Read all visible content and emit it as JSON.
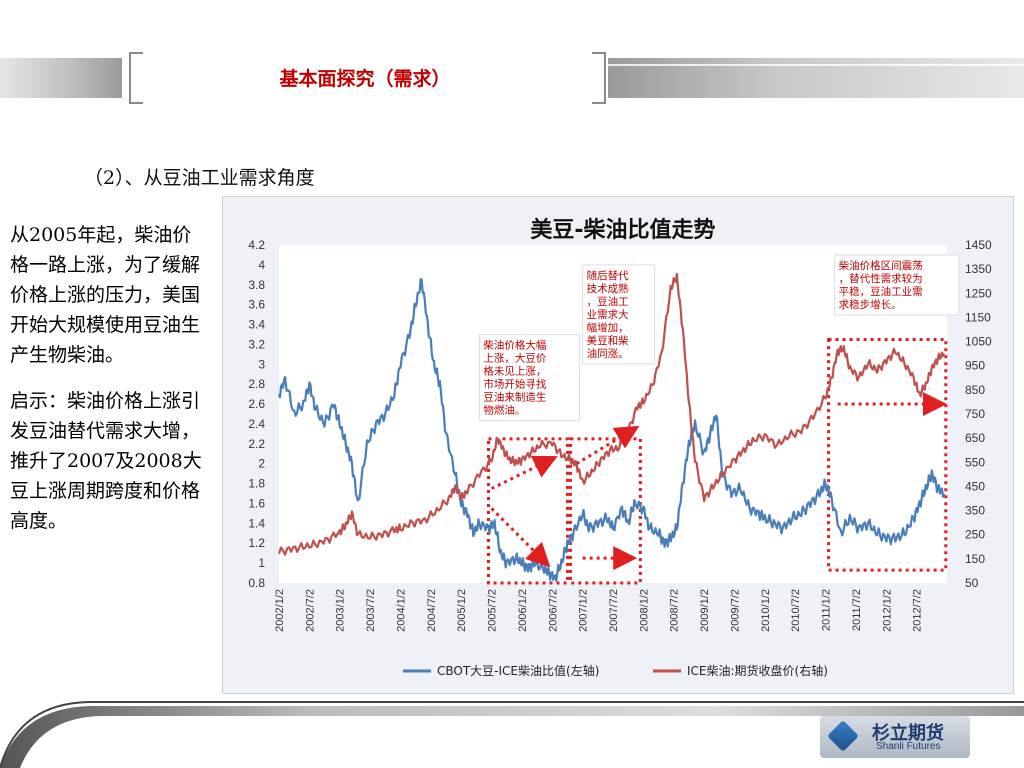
{
  "slide": {
    "title": "基本面探究（需求）",
    "subtitle": "（2）、从豆油工业需求角度",
    "paragraph1": "从2005年起，柴油价格一路上涨，为了缓解价格上涨的压力，美国开始大规模使用豆油生产生物柴油。",
    "paragraph2": "启示：柴油价格上涨引发豆油替代需求大增，推升了2007及2008大豆上涨周期跨度和价格高度。"
  },
  "logo": {
    "name_cn": "杉立期货",
    "name_en": "Shanli Futures"
  },
  "chart_data": {
    "type": "line",
    "title": "美豆-柴油比值走势",
    "x_ticks": [
      "2002/1/2",
      "2002/7/2",
      "2003/1/2",
      "2003/7/2",
      "2004/1/2",
      "2004/7/2",
      "2005/1/2",
      "2005/7/2",
      "2006/1/2",
      "2006/7/2",
      "2007/1/2",
      "2007/7/2",
      "2008/1/2",
      "2008/7/2",
      "2009/1/2",
      "2009/7/2",
      "2010/1/2",
      "2010/7/2",
      "2011/1/2",
      "2011/7/2",
      "2012/1/2",
      "2012/7/2"
    ],
    "y_left": {
      "ticks": [
        "0.8",
        "1",
        "1.2",
        "1.4",
        "1.6",
        "1.8",
        "2",
        "2.2",
        "2.4",
        "2.6",
        "2.8",
        "3",
        "3.2",
        "3.4",
        "3.6",
        "3.8",
        "4",
        "4.2"
      ],
      "min": 0.8,
      "max": 4.2
    },
    "y_right": {
      "ticks": [
        "50",
        "150",
        "250",
        "350",
        "450",
        "550",
        "650",
        "750",
        "850",
        "950",
        "1050",
        "1150",
        "1250",
        "1350",
        "1450"
      ],
      "min": 50,
      "max": 1450
    },
    "x_range": [
      2002.0,
      2013.0
    ],
    "series": [
      {
        "name": "CBOT大豆-ICE柴油比值(左轴)",
        "axis": "left",
        "color": "#4a7ebb",
        "points": [
          [
            2002.0,
            2.7
          ],
          [
            2002.1,
            2.85
          ],
          [
            2002.25,
            2.5
          ],
          [
            2002.4,
            2.6
          ],
          [
            2002.5,
            2.8
          ],
          [
            2002.6,
            2.55
          ],
          [
            2002.75,
            2.4
          ],
          [
            2002.9,
            2.6
          ],
          [
            2003.0,
            2.4
          ],
          [
            2003.1,
            2.2
          ],
          [
            2003.2,
            2.0
          ],
          [
            2003.3,
            1.6
          ],
          [
            2003.45,
            2.2
          ],
          [
            2003.6,
            2.4
          ],
          [
            2003.75,
            2.5
          ],
          [
            2003.9,
            2.7
          ],
          [
            2004.0,
            3.0
          ],
          [
            2004.15,
            3.3
          ],
          [
            2004.25,
            3.6
          ],
          [
            2004.35,
            3.85
          ],
          [
            2004.45,
            3.4
          ],
          [
            2004.55,
            3.0
          ],
          [
            2004.65,
            2.8
          ],
          [
            2004.75,
            2.3
          ],
          [
            2004.9,
            1.9
          ],
          [
            2005.0,
            1.6
          ],
          [
            2005.1,
            1.5
          ],
          [
            2005.2,
            1.3
          ],
          [
            2005.3,
            1.4
          ],
          [
            2005.45,
            1.35
          ],
          [
            2005.55,
            1.4
          ],
          [
            2005.65,
            1.1
          ],
          [
            2005.75,
            1.0
          ],
          [
            2005.9,
            1.05
          ],
          [
            2006.0,
            1.0
          ],
          [
            2006.1,
            0.95
          ],
          [
            2006.2,
            1.0
          ],
          [
            2006.35,
            0.95
          ],
          [
            2006.45,
            0.9
          ],
          [
            2006.55,
            0.85
          ],
          [
            2006.65,
            1.0
          ],
          [
            2006.75,
            1.2
          ],
          [
            2006.85,
            1.3
          ],
          [
            2007.0,
            1.5
          ],
          [
            2007.1,
            1.35
          ],
          [
            2007.25,
            1.4
          ],
          [
            2007.4,
            1.45
          ],
          [
            2007.5,
            1.35
          ],
          [
            2007.65,
            1.55
          ],
          [
            2007.75,
            1.4
          ],
          [
            2007.85,
            1.6
          ],
          [
            2008.0,
            1.55
          ],
          [
            2008.1,
            1.35
          ],
          [
            2008.25,
            1.3
          ],
          [
            2008.35,
            1.2
          ],
          [
            2008.45,
            1.25
          ],
          [
            2008.55,
            1.35
          ],
          [
            2008.65,
            1.8
          ],
          [
            2008.75,
            2.2
          ],
          [
            2008.85,
            2.4
          ],
          [
            2009.0,
            2.1
          ],
          [
            2009.1,
            2.3
          ],
          [
            2009.2,
            2.5
          ],
          [
            2009.3,
            1.9
          ],
          [
            2009.45,
            1.7
          ],
          [
            2009.6,
            1.75
          ],
          [
            2009.75,
            1.55
          ],
          [
            2009.9,
            1.5
          ],
          [
            2010.0,
            1.45
          ],
          [
            2010.15,
            1.4
          ],
          [
            2010.3,
            1.35
          ],
          [
            2010.45,
            1.45
          ],
          [
            2010.6,
            1.5
          ],
          [
            2010.75,
            1.6
          ],
          [
            2010.9,
            1.7
          ],
          [
            2011.0,
            1.8
          ],
          [
            2011.1,
            1.65
          ],
          [
            2011.25,
            1.3
          ],
          [
            2011.4,
            1.45
          ],
          [
            2011.55,
            1.35
          ],
          [
            2011.7,
            1.4
          ],
          [
            2011.85,
            1.3
          ],
          [
            2012.0,
            1.25
          ],
          [
            2012.15,
            1.25
          ],
          [
            2012.3,
            1.3
          ],
          [
            2012.45,
            1.45
          ],
          [
            2012.55,
            1.6
          ],
          [
            2012.65,
            1.75
          ],
          [
            2012.75,
            1.9
          ],
          [
            2012.85,
            1.75
          ],
          [
            2012.95,
            1.7
          ]
        ]
      },
      {
        "name": "ICE柴油:期货收盘价(右轴)",
        "axis": "right",
        "color": "#c0504d",
        "points": [
          [
            2002.0,
            180
          ],
          [
            2002.2,
            190
          ],
          [
            2002.4,
            200
          ],
          [
            2002.6,
            210
          ],
          [
            2002.8,
            230
          ],
          [
            2003.0,
            260
          ],
          [
            2003.1,
            290
          ],
          [
            2003.2,
            340
          ],
          [
            2003.3,
            250
          ],
          [
            2003.5,
            240
          ],
          [
            2003.7,
            250
          ],
          [
            2003.9,
            270
          ],
          [
            2004.0,
            275
          ],
          [
            2004.2,
            300
          ],
          [
            2004.4,
            310
          ],
          [
            2004.6,
            350
          ],
          [
            2004.8,
            400
          ],
          [
            2004.9,
            450
          ],
          [
            2005.0,
            400
          ],
          [
            2005.1,
            430
          ],
          [
            2005.3,
            500
          ],
          [
            2005.5,
            560
          ],
          [
            2005.6,
            650
          ],
          [
            2005.7,
            600
          ],
          [
            2005.8,
            560
          ],
          [
            2005.9,
            550
          ],
          [
            2006.0,
            560
          ],
          [
            2006.15,
            590
          ],
          [
            2006.3,
            620
          ],
          [
            2006.5,
            630
          ],
          [
            2006.65,
            580
          ],
          [
            2006.8,
            560
          ],
          [
            2006.9,
            540
          ],
          [
            2007.0,
            470
          ],
          [
            2007.15,
            510
          ],
          [
            2007.3,
            560
          ],
          [
            2007.45,
            600
          ],
          [
            2007.6,
            610
          ],
          [
            2007.75,
            680
          ],
          [
            2007.9,
            780
          ],
          [
            2008.0,
            800
          ],
          [
            2008.15,
            870
          ],
          [
            2008.3,
            1000
          ],
          [
            2008.45,
            1270
          ],
          [
            2008.55,
            1320
          ],
          [
            2008.65,
            1100
          ],
          [
            2008.75,
            800
          ],
          [
            2008.85,
            560
          ],
          [
            2009.0,
            400
          ],
          [
            2009.15,
            450
          ],
          [
            2009.3,
            500
          ],
          [
            2009.5,
            560
          ],
          [
            2009.65,
            600
          ],
          [
            2009.8,
            640
          ],
          [
            2010.0,
            660
          ],
          [
            2010.2,
            620
          ],
          [
            2010.4,
            660
          ],
          [
            2010.6,
            680
          ],
          [
            2010.8,
            740
          ],
          [
            2011.0,
            820
          ],
          [
            2011.1,
            900
          ],
          [
            2011.2,
            1010
          ],
          [
            2011.3,
            1020
          ],
          [
            2011.4,
            940
          ],
          [
            2011.55,
            900
          ],
          [
            2011.7,
            960
          ],
          [
            2011.85,
            930
          ],
          [
            2012.0,
            970
          ],
          [
            2012.15,
            1010
          ],
          [
            2012.3,
            960
          ],
          [
            2012.45,
            900
          ],
          [
            2012.55,
            830
          ],
          [
            2012.65,
            870
          ],
          [
            2012.75,
            940
          ],
          [
            2012.85,
            980
          ],
          [
            2012.95,
            1000
          ]
        ]
      }
    ],
    "annotations": [
      {
        "text": "柴油价格大幅上涨，大豆价格未见上涨，市场开始寻找豆油来制造生物燃油。",
        "color": "#c00000"
      },
      {
        "text": "随后替代技术成熟，豆油工业需求大幅增加，美豆和柴油同涨。",
        "color": "#c00000"
      },
      {
        "text": "柴油价格区间震荡，替代性需求较为平稳，豆油工业需求稳步增长。",
        "color": "#c00000"
      }
    ],
    "highlight_color": "#e02020",
    "legend_position": "bottom"
  }
}
